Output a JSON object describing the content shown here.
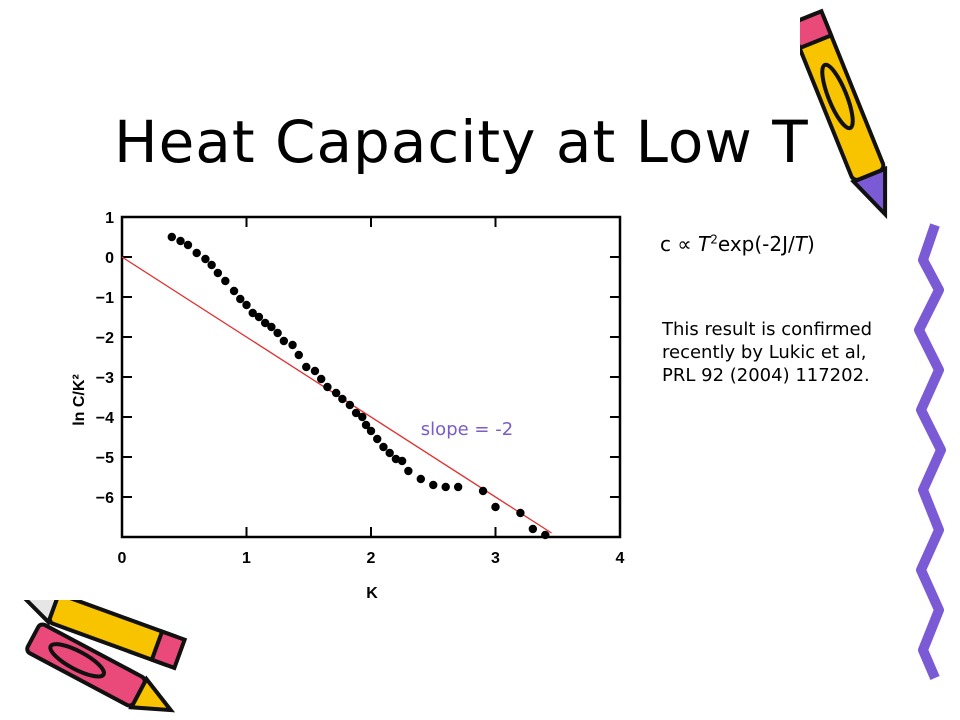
{
  "title": "Heat Capacity at Low T",
  "formula": {
    "c": "c",
    "propto": "∝",
    "T": "T",
    "exp2": "2",
    "tail": "exp(-2J/",
    "T2": "T",
    "close": ")"
  },
  "note": "This result is confirmed recently by Lukic et al, PRL 92 (2004) 117202.",
  "colors": {
    "fit_line": "#e23030",
    "slope_text": "#7a5cc4",
    "points": "#000000"
  },
  "decorations": [
    "pencil-icon",
    "pencil-icon"
  ],
  "chart_data": {
    "type": "scatter",
    "xlabel": "K",
    "ylabel": "ln C/K²",
    "xlim": [
      0,
      4
    ],
    "ylim": [
      -7,
      1
    ],
    "xticks": [
      "0",
      "1",
      "2",
      "3",
      "4"
    ],
    "yticks": [
      "1",
      "0",
      "−1",
      "−2",
      "−3",
      "−4",
      "−5",
      "−6"
    ],
    "annotation": "slope = -2",
    "fit_line": {
      "x": [
        0.0,
        3.45
      ],
      "y": [
        0.0,
        -6.9
      ]
    },
    "points": {
      "x": [
        0.4,
        0.47,
        0.53,
        0.6,
        0.67,
        0.72,
        0.77,
        0.83,
        0.9,
        0.95,
        1.0,
        1.05,
        1.1,
        1.15,
        1.2,
        1.25,
        1.3,
        1.37,
        1.42,
        1.48,
        1.55,
        1.6,
        1.65,
        1.72,
        1.77,
        1.83,
        1.88,
        1.93,
        1.96,
        2.0,
        2.05,
        2.1,
        2.15,
        2.2,
        2.25,
        2.3,
        2.4,
        2.5,
        2.6,
        2.7,
        2.9,
        3.0,
        3.2,
        3.3,
        3.4
      ],
      "y": [
        0.5,
        0.4,
        0.3,
        0.1,
        -0.05,
        -0.2,
        -0.4,
        -0.6,
        -0.85,
        -1.05,
        -1.2,
        -1.4,
        -1.5,
        -1.65,
        -1.75,
        -1.9,
        -2.1,
        -2.2,
        -2.45,
        -2.75,
        -2.85,
        -3.05,
        -3.25,
        -3.4,
        -3.55,
        -3.7,
        -3.9,
        -4.0,
        -4.2,
        -4.35,
        -4.55,
        -4.75,
        -4.9,
        -5.05,
        -5.1,
        -5.35,
        -5.55,
        -5.7,
        -5.75,
        -5.75,
        -5.85,
        -6.25,
        -6.4,
        -6.8,
        -6.95
      ]
    }
  }
}
